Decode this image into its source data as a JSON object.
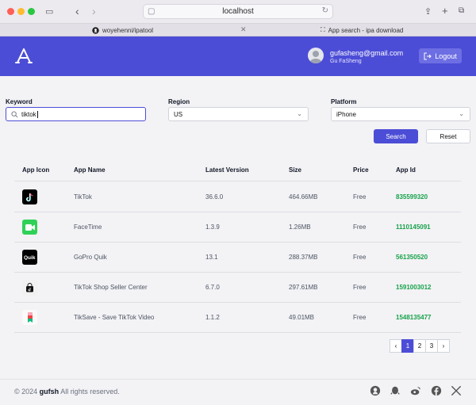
{
  "browser": {
    "url": "localhost",
    "tabs": [
      {
        "label": "woyehenni/ipatool"
      },
      {
        "label": "App search - ipa download"
      }
    ]
  },
  "header": {
    "user_email": "gufasheng@gmail.com",
    "user_name": "Gu FaSheng",
    "logout_label": "Logout"
  },
  "search": {
    "keyword_label": "Keyword",
    "keyword_value": "tiktok",
    "region_label": "Region",
    "region_value": "US",
    "platform_label": "Platform",
    "platform_value": "iPhone",
    "search_button": "Search",
    "reset_button": "Reset"
  },
  "table": {
    "columns": [
      "App Icon",
      "App Name",
      "Latest Version",
      "Size",
      "Price",
      "App Id"
    ],
    "rows": [
      {
        "name": "TikTok",
        "version": "36.6.0",
        "size": "464.66MB",
        "price": "Free",
        "app_id": "835599320",
        "icon": "tiktok-icon"
      },
      {
        "name": "FaceTime",
        "version": "1.3.9",
        "size": "1.26MB",
        "price": "Free",
        "app_id": "1110145091",
        "icon": "facetime-icon"
      },
      {
        "name": "GoPro Quik",
        "version": "13.1",
        "size": "288.37MB",
        "price": "Free",
        "app_id": "561350520",
        "icon": "gopro-quik-icon"
      },
      {
        "name": "TikTok Shop Seller Center",
        "version": "6.7.0",
        "size": "297.61MB",
        "price": "Free",
        "app_id": "1591003012",
        "icon": "tiktok-shop-icon"
      },
      {
        "name": "TikSave - Save TikTok Video",
        "version": "1.1.2",
        "size": "49.01MB",
        "price": "Free",
        "app_id": "1548135477",
        "icon": "tiksave-icon"
      }
    ]
  },
  "pagination": {
    "pages": [
      "1",
      "2",
      "3"
    ],
    "current": "1"
  },
  "footer": {
    "year": "© 2024",
    "brand": "gufsh",
    "rights": "All rights reserved."
  },
  "colors": {
    "accent": "#4c4dd6",
    "app_id": "#16a34a"
  }
}
